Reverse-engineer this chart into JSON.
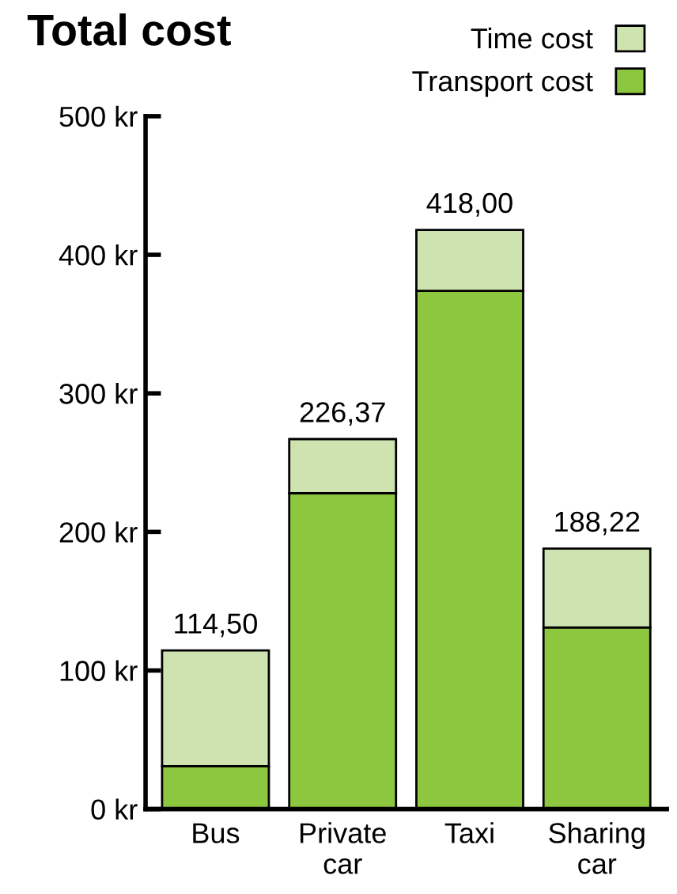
{
  "chart_data": {
    "type": "bar",
    "title": "Total cost",
    "stacked": true,
    "categories": [
      "Bus",
      "Private\ncar",
      "Taxi",
      "Sharing\ncar"
    ],
    "series": [
      {
        "name": "Transport cost",
        "color": "#8dc63f",
        "values": [
          31,
          228,
          374,
          131
        ]
      },
      {
        "name": "Time cost",
        "color": "#cfe3b0",
        "values": [
          83.5,
          39,
          44,
          57
        ]
      }
    ],
    "value_labels": [
      "114,50",
      "226,37",
      "418,00",
      "188,22"
    ],
    "ylim": [
      0,
      500
    ],
    "yticks": [
      {
        "value": 0,
        "label": "0 kr"
      },
      {
        "value": 100,
        "label": "100 kr"
      },
      {
        "value": 200,
        "label": "200 kr"
      },
      {
        "value": 300,
        "label": "300 kr"
      },
      {
        "value": 400,
        "label": "400 kr"
      },
      {
        "value": 500,
        "label": "500 kr"
      }
    ],
    "grid": false,
    "legend": "top right"
  }
}
